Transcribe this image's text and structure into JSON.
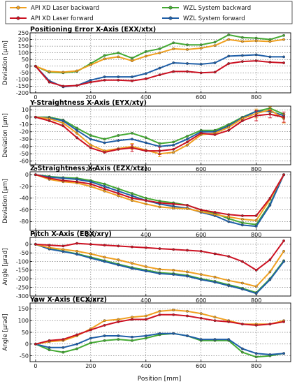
{
  "legend": [
    {
      "name": "API XD Laser backward",
      "color": "#f0a020"
    },
    {
      "name": "API XD Laser forward",
      "color": "#cc1122"
    },
    {
      "name": "WZL System backward",
      "color": "#44aa33"
    },
    {
      "name": "WZL System forward",
      "color": "#1f5fa8"
    }
  ],
  "xlabel": "Position [mm]",
  "chart_data": [
    {
      "type": "line",
      "title": "Positioning Error X-Axis (EXX/xtx)",
      "ylabel": "Deviation [µm]",
      "xlim": [
        -20,
        925
      ],
      "ylim": [
        -200,
        250
      ],
      "xticks": [
        0,
        200,
        400,
        600,
        800
      ],
      "yticks": [
        -200,
        -150,
        -100,
        -50,
        0,
        50,
        100,
        150,
        200,
        250
      ],
      "x": [
        0,
        50,
        100,
        150,
        200,
        250,
        300,
        350,
        400,
        450,
        500,
        550,
        600,
        650,
        700,
        750,
        800,
        850,
        900
      ],
      "series": [
        {
          "name": "API XD Laser backward",
          "values": [
            0,
            -40,
            -45,
            -35,
            10,
            55,
            70,
            40,
            75,
            100,
            130,
            125,
            135,
            155,
            200,
            185,
            190,
            185,
            200
          ],
          "err": []
        },
        {
          "name": "API XD Laser forward",
          "values": [
            0,
            -120,
            -150,
            -145,
            -120,
            -105,
            -105,
            -110,
            -95,
            -65,
            -40,
            -40,
            -50,
            -45,
            20,
            35,
            40,
            30,
            25
          ],
          "err": []
        },
        {
          "name": "WZL System backward",
          "values": [
            0,
            -45,
            -50,
            -40,
            20,
            80,
            100,
            60,
            110,
            130,
            175,
            160,
            160,
            180,
            235,
            215,
            210,
            200,
            230
          ],
          "err": []
        },
        {
          "name": "WZL System forward",
          "values": [
            0,
            -110,
            -155,
            -145,
            -105,
            -80,
            -80,
            -80,
            -55,
            -15,
            25,
            20,
            15,
            25,
            75,
            80,
            85,
            70,
            70
          ],
          "err": []
        }
      ]
    },
    {
      "type": "line",
      "title": "Y-Straightness X-Axis (EYX/xty)",
      "ylabel": "Deviation [µm]",
      "xlim": [
        -20,
        925
      ],
      "ylim": [
        -65,
        15
      ],
      "xticks": [
        0,
        200,
        400,
        600,
        800
      ],
      "yticks": [
        -60,
        -50,
        -40,
        -30,
        -20,
        -10,
        0,
        10
      ],
      "x": [
        0,
        50,
        100,
        150,
        200,
        250,
        300,
        350,
        400,
        450,
        500,
        550,
        600,
        650,
        700,
        750,
        800,
        850,
        900
      ],
      "series": [
        {
          "name": "API XD Laser backward",
          "values": [
            0,
            -2,
            -8,
            -22,
            -38,
            -46,
            -43,
            -40,
            -45,
            -50,
            -48,
            -38,
            -24,
            -22,
            -14,
            -2,
            5,
            10,
            -2
          ],
          "err": [
            0,
            0,
            0,
            0,
            0,
            0,
            0,
            4,
            0,
            4,
            0,
            0,
            0,
            0,
            0,
            0,
            6,
            4,
            6
          ]
        },
        {
          "name": "API XD Laser forward",
          "values": [
            0,
            -5,
            -12,
            -28,
            -42,
            -48,
            -44,
            -42,
            -46,
            -46,
            -44,
            -34,
            -22,
            -24,
            -18,
            -5,
            2,
            4,
            0
          ],
          "err": [
            0,
            0,
            0,
            0,
            0,
            0,
            0,
            5,
            0,
            5,
            0,
            0,
            0,
            0,
            0,
            0,
            7,
            5,
            7
          ]
        },
        {
          "name": "WZL System backward",
          "values": [
            0,
            0,
            -4,
            -15,
            -25,
            -30,
            -25,
            -22,
            -28,
            -36,
            -34,
            -26,
            -18,
            -18,
            -10,
            0,
            8,
            12,
            4
          ],
          "err": []
        },
        {
          "name": "WZL System forward",
          "values": [
            0,
            -1,
            -5,
            -18,
            -30,
            -35,
            -32,
            -30,
            -35,
            -40,
            -38,
            -30,
            -20,
            -20,
            -12,
            -1,
            8,
            8,
            2
          ],
          "err": []
        }
      ]
    },
    {
      "type": "line",
      "title": "Z-Straightness X-Axis (EZX/xtz)",
      "ylabel": "Deviation [µm]",
      "xlim": [
        -20,
        925
      ],
      "ylim": [
        -95,
        5
      ],
      "xticks": [
        0,
        200,
        400,
        600,
        800
      ],
      "yticks": [
        -80,
        -60,
        -40,
        -20,
        0
      ],
      "x": [
        0,
        50,
        100,
        150,
        200,
        250,
        300,
        350,
        400,
        450,
        500,
        550,
        600,
        650,
        700,
        750,
        800,
        850,
        900
      ],
      "series": [
        {
          "name": "API XD Laser backward",
          "values": [
            0,
            -8,
            -12,
            -14,
            -20,
            -28,
            -36,
            -44,
            -50,
            -55,
            -57,
            -58,
            -63,
            -68,
            -72,
            -76,
            -78,
            -42,
            0
          ],
          "err": []
        },
        {
          "name": "API XD Laser forward",
          "values": [
            0,
            -6,
            -10,
            -12,
            -16,
            -24,
            -32,
            -40,
            -44,
            -48,
            -50,
            -52,
            -60,
            -64,
            -68,
            -70,
            -70,
            -40,
            0
          ],
          "err": []
        },
        {
          "name": "WZL System backward",
          "values": [
            0,
            -3,
            -5,
            -6,
            -10,
            -16,
            -24,
            -32,
            -40,
            -45,
            -48,
            -52,
            -60,
            -66,
            -75,
            -82,
            -85,
            -50,
            0
          ],
          "err": []
        },
        {
          "name": "WZL System forward",
          "values": [
            0,
            -4,
            -6,
            -8,
            -12,
            -20,
            -28,
            -36,
            -44,
            -50,
            -54,
            -57,
            -64,
            -70,
            -80,
            -86,
            -88,
            -52,
            0
          ],
          "err": []
        }
      ]
    },
    {
      "type": "line",
      "title": "Pitch X-Axis (EBX/xry)",
      "ylabel": "Angle [µrad]",
      "xlim": [
        -20,
        925
      ],
      "ylim": [
        -300,
        40
      ],
      "xticks": [
        0,
        200,
        400,
        600,
        800
      ],
      "yticks": [
        -300,
        -250,
        -200,
        -150,
        -100,
        -50,
        0
      ],
      "x": [
        0,
        50,
        100,
        150,
        200,
        250,
        300,
        350,
        400,
        450,
        500,
        550,
        600,
        650,
        700,
        750,
        800,
        850,
        900
      ],
      "series": [
        {
          "name": "API XD Laser backward",
          "values": [
            0,
            -20,
            -30,
            -40,
            -55,
            -75,
            -90,
            -110,
            -130,
            -145,
            -150,
            -160,
            -175,
            -190,
            -210,
            -225,
            -245,
            -160,
            -40
          ],
          "err": []
        },
        {
          "name": "API XD Laser forward",
          "values": [
            0,
            -5,
            -10,
            5,
            0,
            -5,
            -10,
            -15,
            -20,
            -25,
            -30,
            -35,
            -40,
            -55,
            -70,
            -100,
            -150,
            -90,
            20
          ],
          "err": []
        },
        {
          "name": "WZL System backward",
          "values": [
            0,
            -25,
            -40,
            -55,
            -75,
            -95,
            -115,
            -135,
            -150,
            -165,
            -170,
            -180,
            -200,
            -215,
            -235,
            -255,
            -280,
            -200,
            -95
          ],
          "err": []
        },
        {
          "name": "WZL System forward",
          "values": [
            0,
            -28,
            -42,
            -58,
            -80,
            -100,
            -120,
            -140,
            -155,
            -170,
            -175,
            -185,
            -205,
            -220,
            -240,
            -260,
            -285,
            -205,
            -100
          ],
          "err": []
        }
      ]
    },
    {
      "type": "line",
      "title": "Yaw X-Axis (ECX/xrz)",
      "ylabel": "Angle [µrad]",
      "xlim": [
        -20,
        925
      ],
      "ylim": [
        -75,
        175
      ],
      "xticks": [
        0,
        200,
        400,
        600,
        800
      ],
      "yticks": [
        -50,
        0,
        50,
        100,
        150
      ],
      "x": [
        0,
        50,
        100,
        150,
        200,
        250,
        300,
        350,
        400,
        450,
        500,
        550,
        600,
        650,
        700,
        750,
        800,
        850,
        900
      ],
      "series": [
        {
          "name": "API XD Laser backward",
          "values": [
            0,
            10,
            15,
            35,
            65,
            100,
            105,
            115,
            120,
            140,
            145,
            140,
            130,
            115,
            100,
            85,
            85,
            85,
            100
          ],
          "err": []
        },
        {
          "name": "API XD Laser forward",
          "values": [
            0,
            15,
            20,
            40,
            60,
            80,
            95,
            105,
            105,
            125,
            125,
            120,
            110,
            100,
            95,
            85,
            80,
            85,
            95
          ],
          "err": []
        },
        {
          "name": "WZL System backward",
          "values": [
            0,
            -25,
            -35,
            -20,
            5,
            15,
            20,
            15,
            25,
            40,
            45,
            35,
            15,
            15,
            15,
            -35,
            -55,
            -50,
            -40
          ],
          "err": []
        },
        {
          "name": "WZL System forward",
          "values": [
            0,
            -15,
            -15,
            0,
            25,
            35,
            35,
            30,
            35,
            45,
            45,
            35,
            20,
            20,
            20,
            -20,
            -40,
            -45,
            -40
          ],
          "err": []
        }
      ]
    }
  ]
}
